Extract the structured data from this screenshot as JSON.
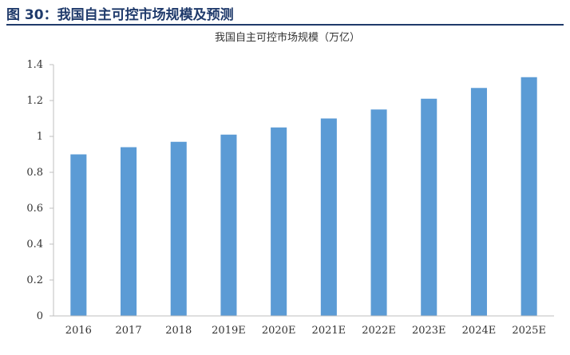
{
  "figure_title": "图 30：我国自主可控市场规模及预测",
  "chart_data": {
    "type": "bar",
    "title": "我国自主可控市场规模（万亿）",
    "categories": [
      "2016",
      "2017",
      "2018",
      "2019E",
      "2020E",
      "2021E",
      "2022E",
      "2023E",
      "2024E",
      "2025E"
    ],
    "values": [
      0.9,
      0.94,
      0.97,
      1.01,
      1.05,
      1.1,
      1.15,
      1.21,
      1.27,
      1.33
    ],
    "ylim": [
      0,
      1.4
    ],
    "yticks": [
      "0",
      "0.2",
      "0.4",
      "0.6",
      "0.8",
      "1",
      "1.2",
      "1.4"
    ],
    "grid": false,
    "legend": "none",
    "bar_color": "#5b9bd5"
  }
}
